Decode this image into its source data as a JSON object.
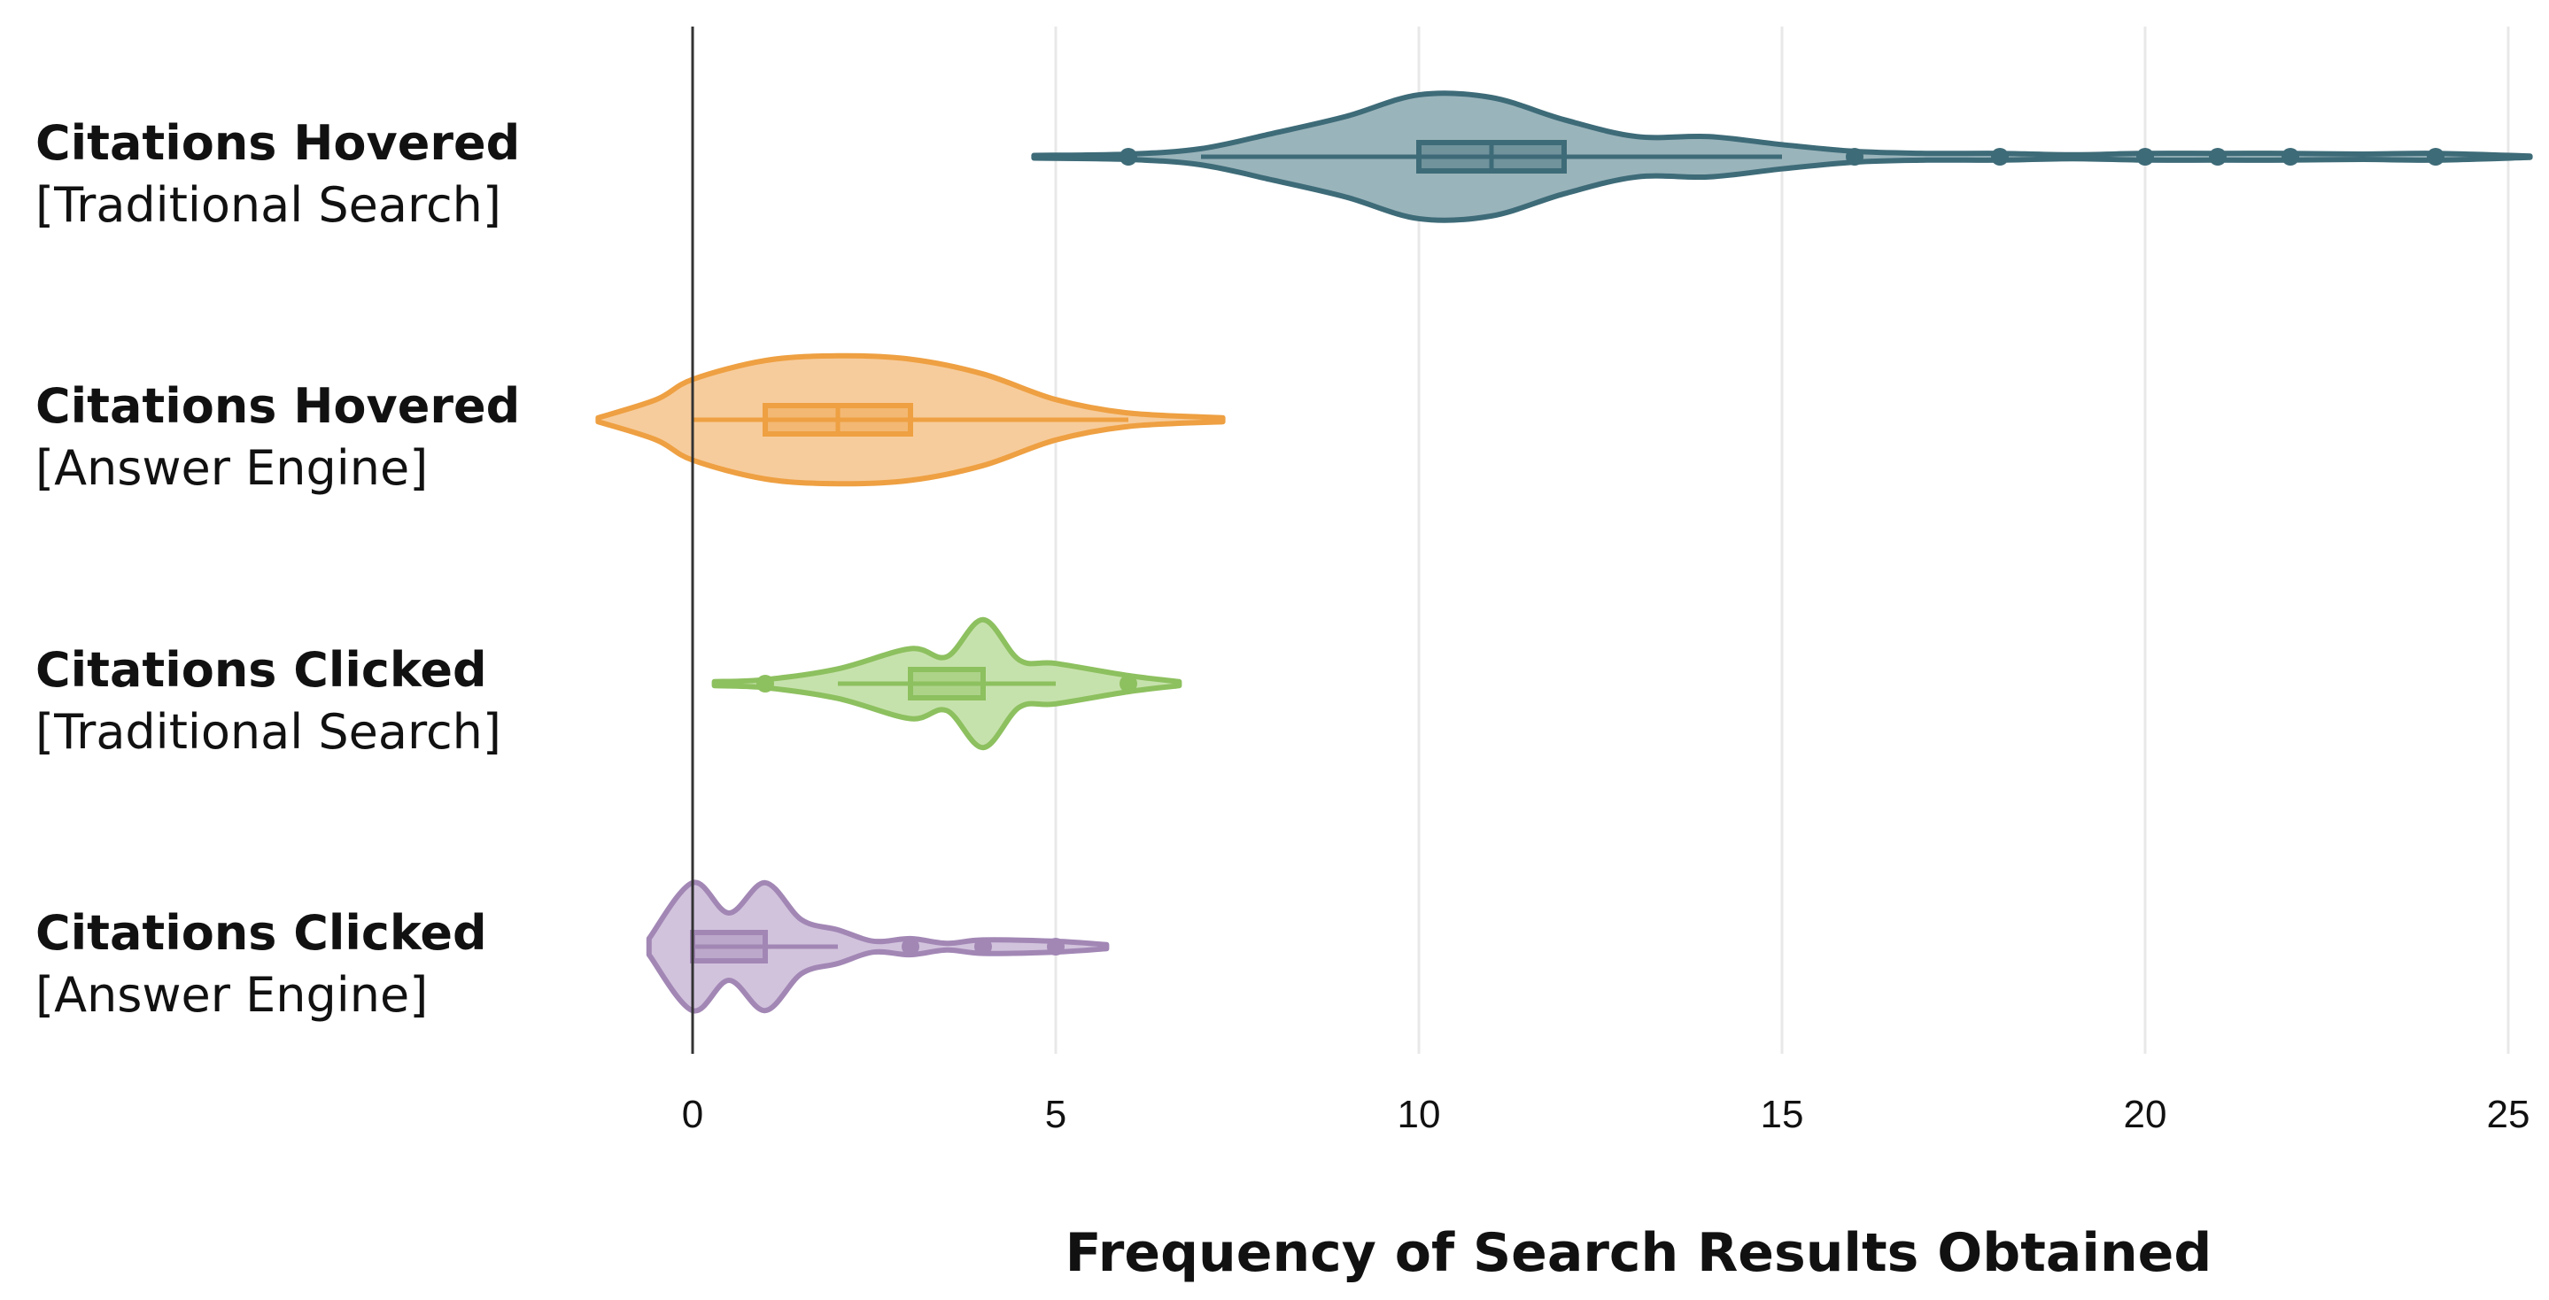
{
  "chart_data": {
    "type": "violin",
    "xlabel": "Frequency of Search Results Obtained",
    "xlim": [
      -1.3,
      25.3
    ],
    "xticks": [
      0,
      5,
      10,
      15,
      20,
      25
    ],
    "grid": "vertical",
    "series": [
      {
        "label_bold": "Citations Hovered",
        "label_sub": "[Traditional Search]",
        "color": "#3e6b78",
        "fill": "#9ab4bb",
        "extent": [
          4.7,
          25.3
        ],
        "box": {
          "q1": 10,
          "median": 11,
          "q3": 12,
          "whisker_low": 7,
          "whisker_high": 15
        },
        "outliers": [
          6,
          16,
          18,
          20,
          21,
          22,
          24
        ],
        "density": [
          [
            4.7,
            0.02
          ],
          [
            6,
            0.04
          ],
          [
            7,
            0.12
          ],
          [
            8,
            0.35
          ],
          [
            9,
            0.6
          ],
          [
            10,
            0.92
          ],
          [
            11,
            0.88
          ],
          [
            12,
            0.55
          ],
          [
            13,
            0.3
          ],
          [
            14,
            0.3
          ],
          [
            15,
            0.18
          ],
          [
            16,
            0.08
          ],
          [
            17,
            0.05
          ],
          [
            18,
            0.05
          ],
          [
            19,
            0.03
          ],
          [
            20,
            0.05
          ],
          [
            21,
            0.05
          ],
          [
            22,
            0.05
          ],
          [
            23,
            0.04
          ],
          [
            24,
            0.05
          ],
          [
            25.3,
            0.01
          ]
        ]
      },
      {
        "label_bold": "Citations Hovered",
        "label_sub": "[Answer Engine]",
        "color": "#eea042",
        "fill": "#f7cc9c",
        "extent": [
          -1.3,
          7.3
        ],
        "box": {
          "q1": 1,
          "median": 2,
          "q3": 3,
          "whisker_low": 0,
          "whisker_high": 6
        },
        "outliers": [],
        "density": [
          [
            -1.3,
            0.03
          ],
          [
            -0.5,
            0.3
          ],
          [
            0,
            0.6
          ],
          [
            1,
            0.88
          ],
          [
            2,
            0.95
          ],
          [
            3,
            0.9
          ],
          [
            4,
            0.68
          ],
          [
            5,
            0.3
          ],
          [
            6,
            0.1
          ],
          [
            7.3,
            0.03
          ]
        ]
      },
      {
        "label_bold": "Citations Clicked",
        "label_sub": "[Traditional Search]",
        "color": "#8dc05f",
        "fill": "#c6e2ac",
        "extent": [
          0.3,
          6.7
        ],
        "box": {
          "q1": 3,
          "median": 3,
          "q3": 4,
          "whisker_low": 2,
          "whisker_high": 5
        },
        "outliers": [
          1,
          6
        ],
        "density": [
          [
            0.3,
            0.03
          ],
          [
            1,
            0.06
          ],
          [
            2,
            0.22
          ],
          [
            3,
            0.52
          ],
          [
            3.5,
            0.4
          ],
          [
            4,
            0.95
          ],
          [
            4.5,
            0.35
          ],
          [
            5,
            0.3
          ],
          [
            6,
            0.12
          ],
          [
            6.7,
            0.03
          ]
        ]
      },
      {
        "label_bold": "Citations Clicked",
        "label_sub": "[Answer Engine]",
        "color": "#a287b5",
        "fill": "#d2c3dd",
        "extent": [
          -0.6,
          5.7
        ],
        "box": {
          "q1": 0,
          "median": 0,
          "q3": 1,
          "whisker_low": 0,
          "whisker_high": 2
        },
        "outliers": [
          3,
          4,
          5
        ],
        "density": [
          [
            -0.6,
            0.12
          ],
          [
            0,
            0.95
          ],
          [
            0.5,
            0.5
          ],
          [
            1,
            0.95
          ],
          [
            1.5,
            0.4
          ],
          [
            2,
            0.25
          ],
          [
            2.5,
            0.08
          ],
          [
            3,
            0.12
          ],
          [
            3.5,
            0.05
          ],
          [
            4,
            0.1
          ],
          [
            5,
            0.08
          ],
          [
            5.7,
            0.03
          ]
        ]
      }
    ]
  }
}
